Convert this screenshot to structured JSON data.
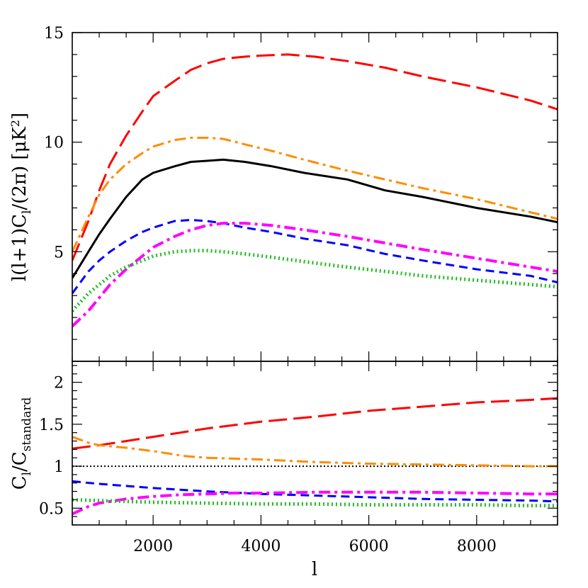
{
  "chart_data": [
    {
      "type": "line",
      "panel": "top",
      "xlabel": "",
      "ylabel": "l(l+1)C_l/(2π) [μK²]",
      "ylabel_parts": {
        "main": "l(l+1)C",
        "sub": "l",
        "after": "/(2π)  [μK",
        "sup": "2",
        "end": "]"
      },
      "xlim": [
        500,
        9500
      ],
      "ylim": [
        0,
        15
      ],
      "y_ticks": [
        5,
        10,
        15
      ],
      "y_tick_labels": [
        "5",
        "10",
        "15"
      ],
      "grid": false,
      "series": [
        {
          "color": "#000000",
          "style": "solid",
          "width": 3,
          "x": [
            500,
            800,
            1000,
            1200,
            1500,
            1800,
            2000,
            2400,
            2700,
            3000,
            3300,
            3700,
            4200,
            4800,
            5600,
            6300,
            7000,
            8000,
            9000,
            9500
          ],
          "y": [
            3.8,
            5.0,
            5.8,
            6.5,
            7.5,
            8.3,
            8.6,
            8.9,
            9.1,
            9.15,
            9.2,
            9.1,
            8.9,
            8.6,
            8.3,
            7.8,
            7.5,
            7.0,
            6.6,
            6.35
          ]
        },
        {
          "color": "#ff0000",
          "style": "longdash",
          "width": 3,
          "x": [
            500,
            800,
            1000,
            1200,
            1500,
            1800,
            2000,
            2400,
            2700,
            3000,
            3300,
            3700,
            4000,
            4500,
            5000,
            5600,
            6300,
            7000,
            8000,
            9000,
            9500
          ],
          "y": [
            4.6,
            6.4,
            7.8,
            9.0,
            10.3,
            11.4,
            12.1,
            12.8,
            13.3,
            13.6,
            13.8,
            13.9,
            13.95,
            14.0,
            13.9,
            13.7,
            13.4,
            13.0,
            12.5,
            11.9,
            11.5
          ]
        },
        {
          "color": "#ff8c00",
          "style": "dashdot",
          "width": 3,
          "x": [
            500,
            800,
            1000,
            1200,
            1500,
            1800,
            2000,
            2400,
            2700,
            3000,
            3300,
            3700,
            4200,
            4800,
            5600,
            6300,
            7000,
            8000,
            9000,
            9500
          ],
          "y": [
            5.0,
            6.6,
            7.6,
            8.3,
            9.0,
            9.5,
            9.8,
            10.1,
            10.2,
            10.2,
            10.15,
            9.9,
            9.6,
            9.2,
            8.7,
            8.3,
            7.9,
            7.4,
            6.8,
            6.5
          ]
        },
        {
          "color": "#0000ff",
          "style": "shortdash",
          "width": 3,
          "x": [
            500,
            800,
            1000,
            1200,
            1500,
            1800,
            2000,
            2400,
            2700,
            3000,
            3300,
            3700,
            4200,
            4800,
            5600,
            6300,
            7000,
            8000,
            9000,
            9500
          ],
          "y": [
            3.1,
            4.1,
            4.6,
            5.0,
            5.5,
            5.9,
            6.1,
            6.4,
            6.45,
            6.4,
            6.3,
            6.1,
            5.9,
            5.6,
            5.3,
            4.9,
            4.6,
            4.2,
            3.9,
            3.6
          ]
        },
        {
          "color": "#ff00ff",
          "style": "dashdot",
          "width": 4,
          "x": [
            500,
            800,
            1000,
            1200,
            1500,
            1800,
            2000,
            2400,
            2700,
            3000,
            3300,
            3700,
            4200,
            4800,
            5600,
            6300,
            7000,
            8000,
            9000,
            9500
          ],
          "y": [
            1.6,
            2.3,
            2.9,
            3.5,
            4.2,
            4.8,
            5.2,
            5.7,
            6.0,
            6.2,
            6.3,
            6.3,
            6.2,
            6.0,
            5.7,
            5.4,
            5.1,
            4.7,
            4.3,
            4.1
          ]
        },
        {
          "color": "#22bb22",
          "style": "dotted",
          "width": 5,
          "x": [
            500,
            800,
            1000,
            1200,
            1500,
            1800,
            2000,
            2400,
            2700,
            3000,
            3300,
            3700,
            4200,
            4800,
            5600,
            6300,
            7000,
            8000,
            9000,
            9500
          ],
          "y": [
            2.3,
            3.1,
            3.5,
            3.9,
            4.3,
            4.6,
            4.8,
            5.0,
            5.05,
            5.05,
            5.0,
            4.9,
            4.75,
            4.55,
            4.3,
            4.1,
            3.9,
            3.7,
            3.5,
            3.4
          ]
        }
      ]
    },
    {
      "type": "line",
      "panel": "bottom",
      "xlabel": "l",
      "ylabel": "C_l/C_standard",
      "ylabel_parts": {
        "main": "C",
        "sub": "l",
        "after": "/C",
        "sub2": "standard"
      },
      "xlim": [
        500,
        9500
      ],
      "ylim": [
        0.3,
        2.25
      ],
      "x_ticks": [
        2000,
        4000,
        6000,
        8000
      ],
      "x_tick_labels": [
        "2000",
        "4000",
        "6000",
        "8000"
      ],
      "y_ticks": [
        0.5,
        1,
        1.5,
        2
      ],
      "y_tick_labels": [
        "0.5",
        "1",
        "1.5",
        "2"
      ],
      "grid": false,
      "series": [
        {
          "color": "#000000",
          "style": "finedot",
          "width": 2,
          "x": [
            500,
            9500
          ],
          "y": [
            1.0,
            1.0
          ]
        },
        {
          "color": "#ff0000",
          "style": "longdash",
          "width": 3,
          "x": [
            500,
            1000,
            2000,
            3000,
            4000,
            5000,
            6000,
            7000,
            8000,
            9000,
            9500
          ],
          "y": [
            1.21,
            1.25,
            1.35,
            1.45,
            1.53,
            1.59,
            1.66,
            1.71,
            1.76,
            1.79,
            1.81
          ]
        },
        {
          "color": "#ff8c00",
          "style": "dashdot",
          "width": 3,
          "x": [
            500,
            800,
            1000,
            1500,
            2000,
            2600,
            3000,
            4000,
            5000,
            6000,
            7000,
            8000,
            9000,
            9500
          ],
          "y": [
            1.35,
            1.28,
            1.25,
            1.22,
            1.18,
            1.12,
            1.1,
            1.08,
            1.05,
            1.03,
            1.02,
            1.01,
            1.0,
            1.0
          ]
        },
        {
          "color": "#0000ff",
          "style": "shortdash",
          "width": 3,
          "x": [
            500,
            1000,
            2000,
            3000,
            4000,
            5000,
            6000,
            7000,
            8000,
            9000,
            9500
          ],
          "y": [
            0.82,
            0.79,
            0.74,
            0.7,
            0.67,
            0.65,
            0.63,
            0.61,
            0.6,
            0.59,
            0.58
          ]
        },
        {
          "color": "#ff00ff",
          "style": "dashdot",
          "width": 4,
          "x": [
            500,
            800,
            1000,
            1500,
            2000,
            2500,
            3000,
            3500,
            4000,
            5000,
            6000,
            7000,
            8000,
            9000,
            9500
          ],
          "y": [
            0.43,
            0.52,
            0.56,
            0.61,
            0.64,
            0.66,
            0.67,
            0.68,
            0.68,
            0.69,
            0.69,
            0.69,
            0.68,
            0.67,
            0.67
          ]
        },
        {
          "color": "#22bb22",
          "style": "dotted",
          "width": 5,
          "x": [
            500,
            1000,
            2000,
            3000,
            4000,
            5000,
            6000,
            7000,
            8000,
            9000,
            9500
          ],
          "y": [
            0.6,
            0.59,
            0.57,
            0.56,
            0.55,
            0.55,
            0.54,
            0.54,
            0.54,
            0.53,
            0.53
          ]
        }
      ]
    }
  ]
}
